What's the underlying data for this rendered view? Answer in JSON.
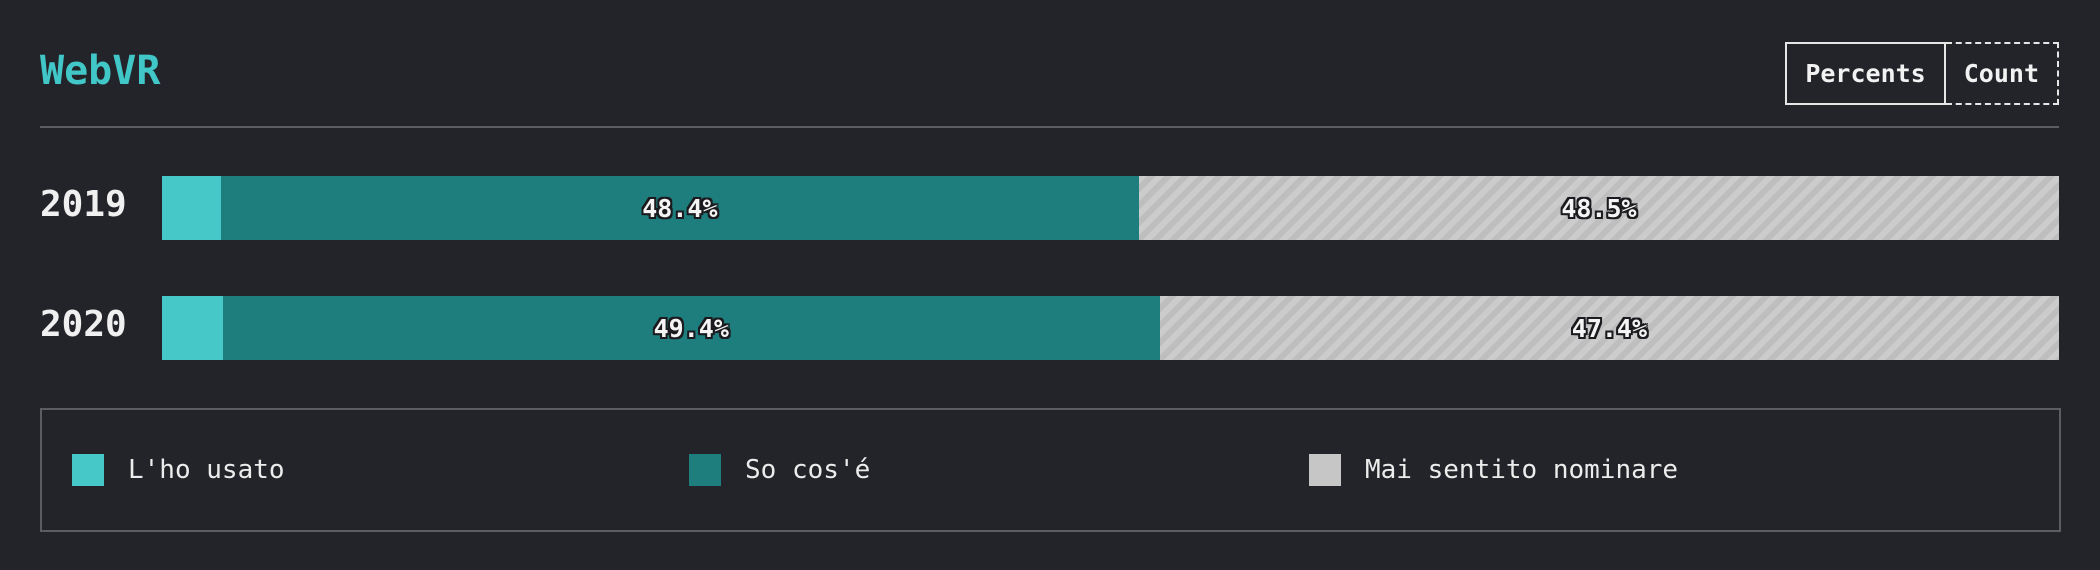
{
  "title": "WebVR",
  "toggle": {
    "percents_label": "Percents",
    "count_label": "Count"
  },
  "colors": {
    "used": "#46c8c9",
    "know": "#1e7e7d",
    "never": "#c6c6c6",
    "title": "#41c7c7",
    "background": "#232429"
  },
  "chart_data": {
    "type": "bar",
    "orientation": "horizontal",
    "stacked": true,
    "categories": [
      "2019",
      "2020"
    ],
    "series": [
      {
        "name": "L'ho usato",
        "values": [
          3.1,
          3.2
        ]
      },
      {
        "name": "So cos'é",
        "values": [
          48.4,
          49.4
        ]
      },
      {
        "name": "Mai sentito nominare",
        "values": [
          48.5,
          47.4
        ]
      }
    ],
    "value_labels": {
      "2019": [
        "",
        "48.4%",
        "48.5%"
      ],
      "2020": [
        "",
        "49.4%",
        "47.4%"
      ]
    },
    "xlim": [
      0,
      100
    ],
    "legend_position": "bottom"
  },
  "legend": [
    {
      "label": "L'ho usato"
    },
    {
      "label": "So cos'é"
    },
    {
      "label": "Mai sentito nominare"
    }
  ]
}
